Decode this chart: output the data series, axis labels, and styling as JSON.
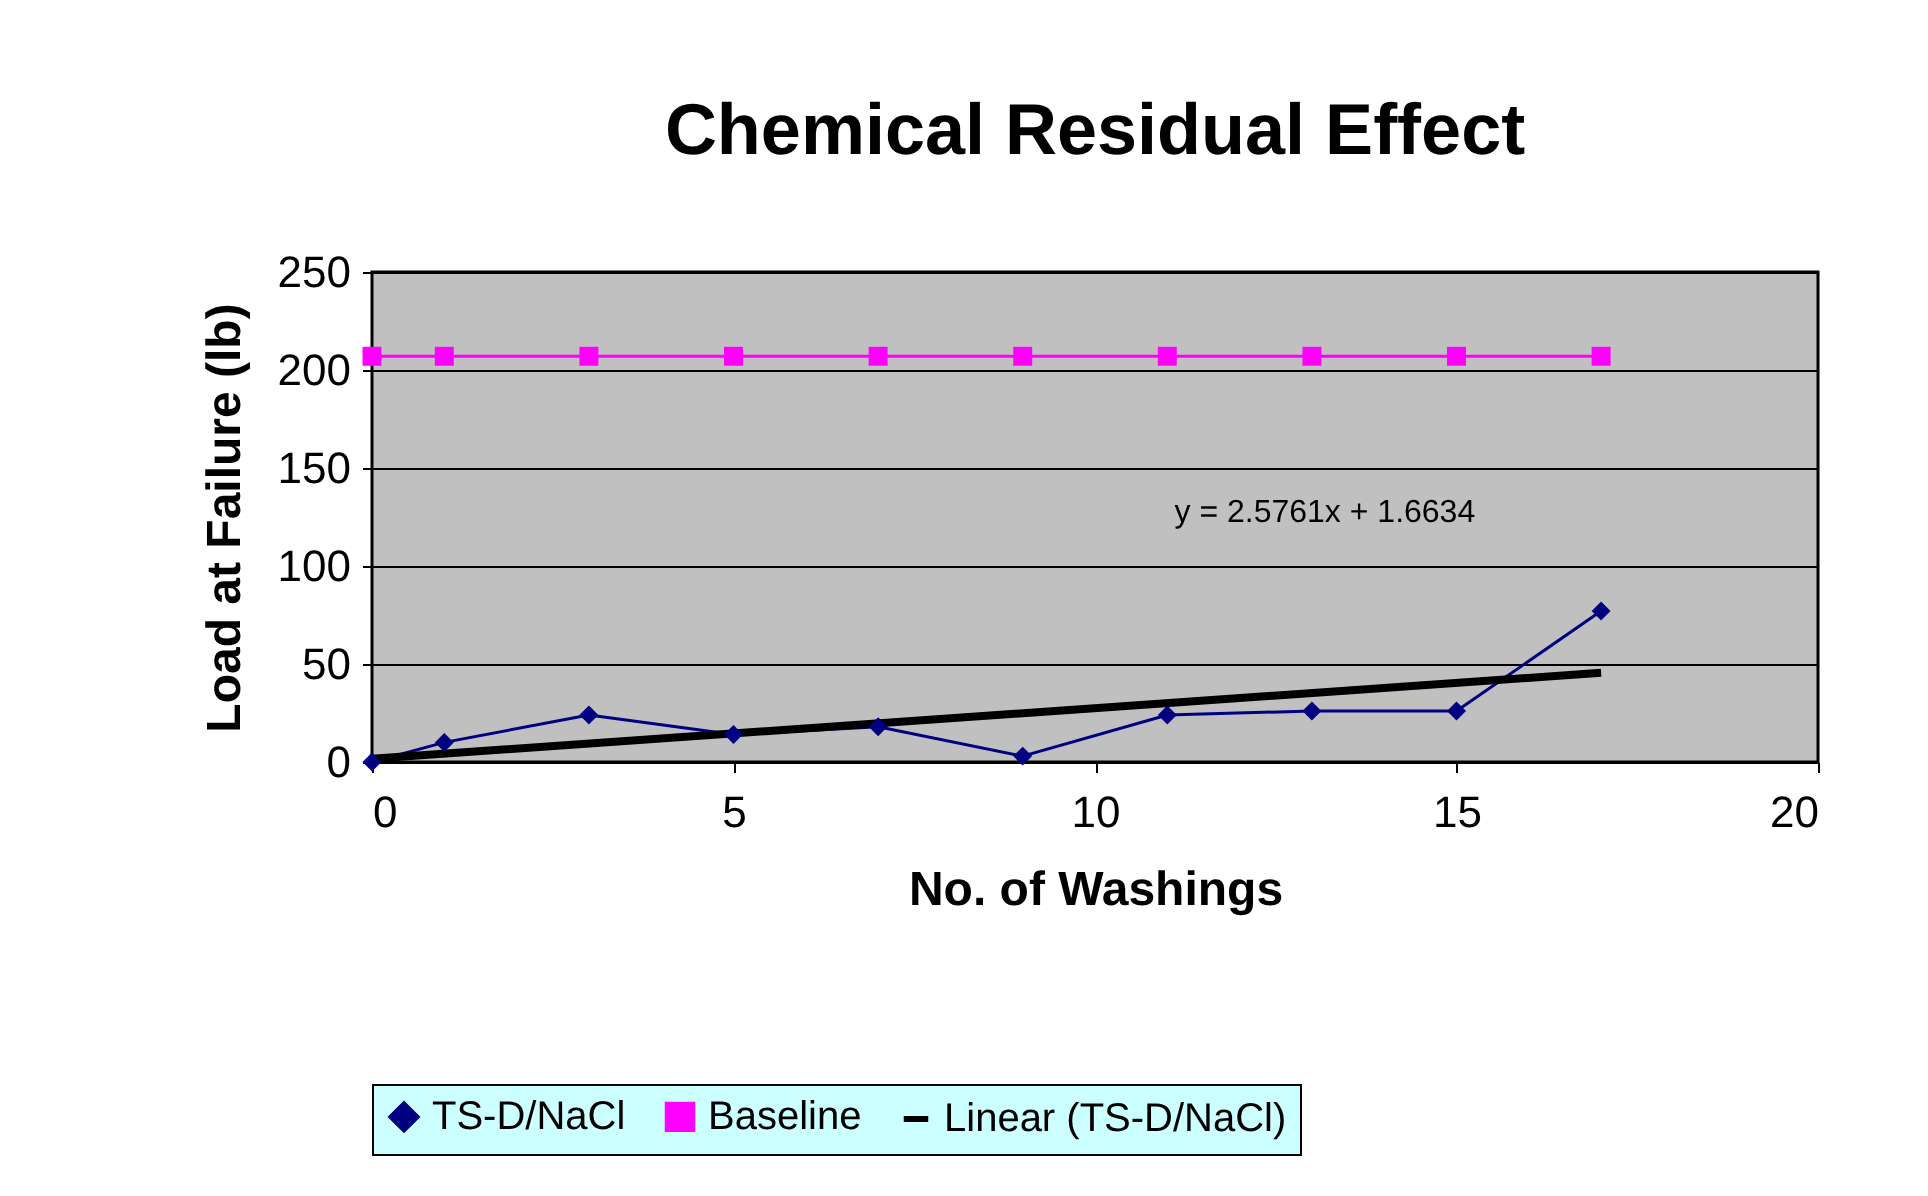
{
  "chart_data": {
    "type": "line",
    "title": "Chemical Residual Effect",
    "xlabel": "No. of Washings",
    "ylabel": "Load at Failure (lb)",
    "x": [
      0,
      1,
      3,
      5,
      7,
      9,
      11,
      13,
      15,
      17
    ],
    "series": [
      {
        "name": "TS-D/NaCl",
        "color": "#000080",
        "marker": "diamond",
        "values": [
          0,
          10,
          24,
          14,
          18,
          3,
          24,
          26,
          26,
          77
        ]
      },
      {
        "name": "Baseline",
        "color": "#ff00ff",
        "marker": "square",
        "values": [
          207,
          207,
          207,
          207,
          207,
          207,
          207,
          207,
          207,
          207
        ]
      },
      {
        "name": "Linear (TS-D/NaCl)",
        "color": "#000000",
        "marker": "none",
        "x": [
          0,
          17
        ],
        "values": [
          1.7,
          45.5
        ]
      }
    ],
    "annotations": [
      "y = 2.5761x + 1.6634"
    ],
    "xlim": [
      0,
      20
    ],
    "xticks": [
      0,
      5,
      10,
      15,
      20
    ],
    "ylim": [
      0,
      250
    ],
    "yticks": [
      0,
      50,
      100,
      150,
      200,
      250
    ],
    "grid": "y",
    "legend": "bottom",
    "line_style": "solid"
  }
}
